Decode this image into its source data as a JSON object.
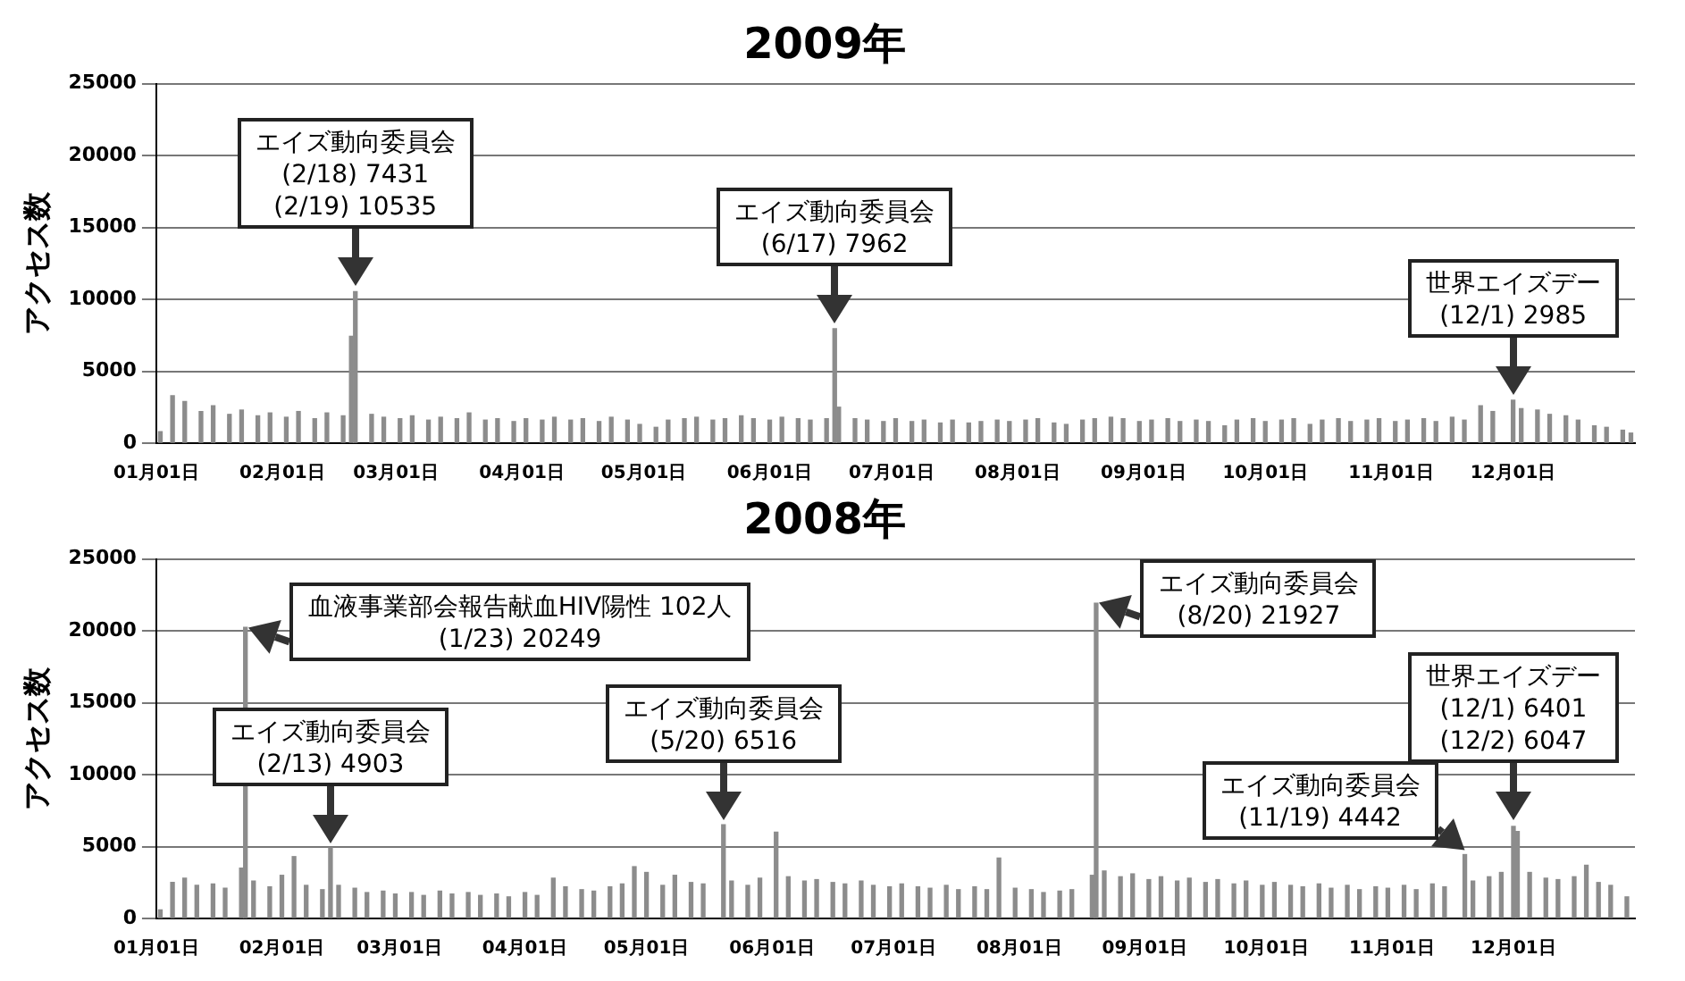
{
  "chart_data": [
    {
      "type": "bar",
      "title": "2009年",
      "ylabel": "アクセス数",
      "color": "#8c8c8c",
      "grid": "y",
      "xlim": [
        "2009-01-01",
        "2009-12-31"
      ],
      "xticks": [
        {
          "value": "2009-01-01",
          "label": "01月01日"
        },
        {
          "value": "2009-02-01",
          "label": "02月01日"
        },
        {
          "value": "2009-03-01",
          "label": "03月01日"
        },
        {
          "value": "2009-04-01",
          "label": "04月01日"
        },
        {
          "value": "2009-05-01",
          "label": "05月01日"
        },
        {
          "value": "2009-06-01",
          "label": "06月01日"
        },
        {
          "value": "2009-07-01",
          "label": "07月01日"
        },
        {
          "value": "2009-08-01",
          "label": "08月01日"
        },
        {
          "value": "2009-09-01",
          "label": "09月01日"
        },
        {
          "value": "2009-10-01",
          "label": "10月01日"
        },
        {
          "value": "2009-11-01",
          "label": "11月01日"
        },
        {
          "value": "2009-12-01",
          "label": "12月01日"
        }
      ],
      "ylim": [
        0,
        25000
      ],
      "yticks": [
        0,
        5000,
        10000,
        15000,
        20000,
        25000
      ],
      "x": [
        "2009-01-02",
        "2009-01-05",
        "2009-01-08",
        "2009-01-12",
        "2009-01-15",
        "2009-01-19",
        "2009-01-22",
        "2009-01-26",
        "2009-01-29",
        "2009-02-02",
        "2009-02-05",
        "2009-02-09",
        "2009-02-12",
        "2009-02-16",
        "2009-02-18",
        "2009-02-19",
        "2009-02-23",
        "2009-02-26",
        "2009-03-02",
        "2009-03-05",
        "2009-03-09",
        "2009-03-12",
        "2009-03-16",
        "2009-03-19",
        "2009-03-23",
        "2009-03-26",
        "2009-03-30",
        "2009-04-02",
        "2009-04-06",
        "2009-04-09",
        "2009-04-13",
        "2009-04-16",
        "2009-04-20",
        "2009-04-23",
        "2009-04-27",
        "2009-04-30",
        "2009-05-04",
        "2009-05-07",
        "2009-05-11",
        "2009-05-14",
        "2009-05-18",
        "2009-05-21",
        "2009-05-25",
        "2009-05-28",
        "2009-06-01",
        "2009-06-04",
        "2009-06-08",
        "2009-06-11",
        "2009-06-15",
        "2009-06-17",
        "2009-06-18",
        "2009-06-22",
        "2009-06-25",
        "2009-06-29",
        "2009-07-02",
        "2009-07-06",
        "2009-07-09",
        "2009-07-13",
        "2009-07-16",
        "2009-07-20",
        "2009-07-23",
        "2009-07-27",
        "2009-07-30",
        "2009-08-03",
        "2009-08-06",
        "2009-08-10",
        "2009-08-13",
        "2009-08-17",
        "2009-08-20",
        "2009-08-24",
        "2009-08-27",
        "2009-08-31",
        "2009-09-03",
        "2009-09-07",
        "2009-09-10",
        "2009-09-14",
        "2009-09-17",
        "2009-09-21",
        "2009-09-24",
        "2009-09-28",
        "2009-10-01",
        "2009-10-05",
        "2009-10-08",
        "2009-10-12",
        "2009-10-15",
        "2009-10-19",
        "2009-10-22",
        "2009-10-26",
        "2009-10-29",
        "2009-11-02",
        "2009-11-05",
        "2009-11-09",
        "2009-11-12",
        "2009-11-16",
        "2009-11-19",
        "2009-11-23",
        "2009-11-26",
        "2009-12-01",
        "2009-12-03",
        "2009-12-07",
        "2009-12-10",
        "2009-12-14",
        "2009-12-17",
        "2009-12-21",
        "2009-12-24",
        "2009-12-28",
        "2009-12-30"
      ],
      "values": [
        800,
        3300,
        2900,
        2200,
        2600,
        2000,
        2300,
        1900,
        2100,
        1800,
        2200,
        1700,
        2100,
        1900,
        7431,
        10535,
        2000,
        1800,
        1700,
        1900,
        1600,
        1800,
        1700,
        2100,
        1600,
        1700,
        1500,
        1700,
        1600,
        1800,
        1600,
        1700,
        1500,
        1800,
        1600,
        1300,
        1100,
        1600,
        1700,
        1800,
        1600,
        1700,
        1900,
        1700,
        1600,
        1800,
        1700,
        1600,
        1700,
        7962,
        2500,
        1700,
        1600,
        1500,
        1700,
        1500,
        1600,
        1400,
        1600,
        1400,
        1500,
        1600,
        1500,
        1600,
        1700,
        1400,
        1300,
        1600,
        1700,
        1800,
        1700,
        1500,
        1600,
        1700,
        1500,
        1600,
        1500,
        1200,
        1600,
        1700,
        1500,
        1600,
        1700,
        1300,
        1600,
        1700,
        1500,
        1600,
        1700,
        1500,
        1600,
        1700,
        1500,
        1800,
        1600,
        2600,
        2200,
        2985,
        2400,
        2300,
        2000,
        1900,
        1600,
        1200,
        1100,
        900,
        700
      ],
      "annotations": [
        {
          "text": "エイズ動向委員会\n(2/18) 7431\n(2/19) 10535",
          "x": "2009-02-19",
          "y": 10535
        },
        {
          "text": "エイズ動向委員会\n(6/17) 7962",
          "x": "2009-06-17",
          "y": 7962
        },
        {
          "text": "世界エイズデー\n(12/1) 2985",
          "x": "2009-12-01",
          "y": 2985
        }
      ]
    },
    {
      "type": "bar",
      "title": "2008年",
      "ylabel": "アクセス数",
      "color": "#8c8c8c",
      "grid": "y",
      "xlim": [
        "2008-01-01",
        "2008-12-31"
      ],
      "xticks": [
        {
          "value": "2008-01-01",
          "label": "01月01日"
        },
        {
          "value": "2008-02-01",
          "label": "02月01日"
        },
        {
          "value": "2008-03-01",
          "label": "03月01日"
        },
        {
          "value": "2008-04-01",
          "label": "04月01日"
        },
        {
          "value": "2008-05-01",
          "label": "05月01日"
        },
        {
          "value": "2008-06-01",
          "label": "06月01日"
        },
        {
          "value": "2008-07-01",
          "label": "07月01日"
        },
        {
          "value": "2008-08-01",
          "label": "08月01日"
        },
        {
          "value": "2008-09-01",
          "label": "09月01日"
        },
        {
          "value": "2008-10-01",
          "label": "10月01日"
        },
        {
          "value": "2008-11-01",
          "label": "11月01日"
        },
        {
          "value": "2008-12-01",
          "label": "12月01日"
        }
      ],
      "ylim": [
        0,
        25000
      ],
      "yticks": [
        0,
        5000,
        10000,
        15000,
        20000,
        25000
      ],
      "x": [
        "2008-01-02",
        "2008-01-05",
        "2008-01-08",
        "2008-01-11",
        "2008-01-15",
        "2008-01-18",
        "2008-01-22",
        "2008-01-23",
        "2008-01-25",
        "2008-01-29",
        "2008-02-01",
        "2008-02-04",
        "2008-02-07",
        "2008-02-11",
        "2008-02-13",
        "2008-02-15",
        "2008-02-19",
        "2008-02-22",
        "2008-02-26",
        "2008-02-29",
        "2008-03-04",
        "2008-03-07",
        "2008-03-11",
        "2008-03-14",
        "2008-03-18",
        "2008-03-21",
        "2008-03-25",
        "2008-03-28",
        "2008-04-01",
        "2008-04-04",
        "2008-04-08",
        "2008-04-11",
        "2008-04-15",
        "2008-04-18",
        "2008-04-22",
        "2008-04-25",
        "2008-04-28",
        "2008-05-01",
        "2008-05-05",
        "2008-05-08",
        "2008-05-12",
        "2008-05-15",
        "2008-05-20",
        "2008-05-22",
        "2008-05-26",
        "2008-05-29",
        "2008-06-02",
        "2008-06-05",
        "2008-06-09",
        "2008-06-12",
        "2008-06-16",
        "2008-06-19",
        "2008-06-23",
        "2008-06-26",
        "2008-06-30",
        "2008-07-03",
        "2008-07-07",
        "2008-07-10",
        "2008-07-14",
        "2008-07-17",
        "2008-07-21",
        "2008-07-24",
        "2008-07-27",
        "2008-07-31",
        "2008-08-04",
        "2008-08-07",
        "2008-08-11",
        "2008-08-14",
        "2008-08-19",
        "2008-08-20",
        "2008-08-22",
        "2008-08-26",
        "2008-08-29",
        "2008-09-02",
        "2008-09-05",
        "2008-09-09",
        "2008-09-12",
        "2008-09-16",
        "2008-09-19",
        "2008-09-23",
        "2008-09-26",
        "2008-09-30",
        "2008-10-03",
        "2008-10-07",
        "2008-10-10",
        "2008-10-14",
        "2008-10-17",
        "2008-10-21",
        "2008-10-24",
        "2008-10-28",
        "2008-10-31",
        "2008-11-04",
        "2008-11-07",
        "2008-11-11",
        "2008-11-14",
        "2008-11-19",
        "2008-11-21",
        "2008-11-25",
        "2008-11-28",
        "2008-12-01",
        "2008-12-02",
        "2008-12-05",
        "2008-12-09",
        "2008-12-12",
        "2008-12-16",
        "2008-12-19",
        "2008-12-22",
        "2008-12-25",
        "2008-12-29"
      ],
      "values": [
        600,
        2500,
        2800,
        2300,
        2400,
        2100,
        3500,
        20249,
        2600,
        2200,
        3000,
        4300,
        2300,
        2000,
        4903,
        2300,
        2100,
        1800,
        1900,
        1700,
        1800,
        1600,
        1900,
        1700,
        1800,
        1600,
        1700,
        1500,
        1800,
        1600,
        2800,
        2200,
        2000,
        1900,
        2200,
        2400,
        3600,
        3200,
        2300,
        3000,
        2500,
        2400,
        6516,
        2600,
        2300,
        2800,
        6000,
        2900,
        2600,
        2700,
        2500,
        2400,
        2600,
        2300,
        2200,
        2400,
        2200,
        2100,
        2300,
        2000,
        2200,
        2000,
        4200,
        2100,
        2000,
        1800,
        1900,
        2000,
        3000,
        21927,
        3300,
        2900,
        3100,
        2700,
        2900,
        2600,
        2800,
        2500,
        2700,
        2400,
        2600,
        2300,
        2500,
        2300,
        2200,
        2400,
        2100,
        2300,
        2000,
        2200,
        2100,
        2300,
        2000,
        2400,
        2200,
        4442,
        2600,
        2900,
        3200,
        6401,
        6047,
        3200,
        2800,
        2700,
        2900,
        3700,
        2500,
        2300,
        1500
      ],
      "annotations": [
        {
          "text": "血液事業部会報告献血HIV陽性 102人\n(1/23) 20249",
          "x": "2008-01-23",
          "y": 20249
        },
        {
          "text": "エイズ動向委員会\n(2/13) 4903",
          "x": "2008-02-13",
          "y": 4903
        },
        {
          "text": "エイズ動向委員会\n(5/20) 6516",
          "x": "2008-05-20",
          "y": 6516
        },
        {
          "text": "エイズ動向委員会\n(8/20) 21927",
          "x": "2008-08-20",
          "y": 21927
        },
        {
          "text": "エイズ動向委員会\n(11/19) 4442",
          "x": "2008-11-19",
          "y": 4442
        },
        {
          "text": "世界エイズデー\n(12/1) 6401\n(12/2) 6047",
          "x": "2008-12-01",
          "y": 6401
        }
      ]
    }
  ]
}
